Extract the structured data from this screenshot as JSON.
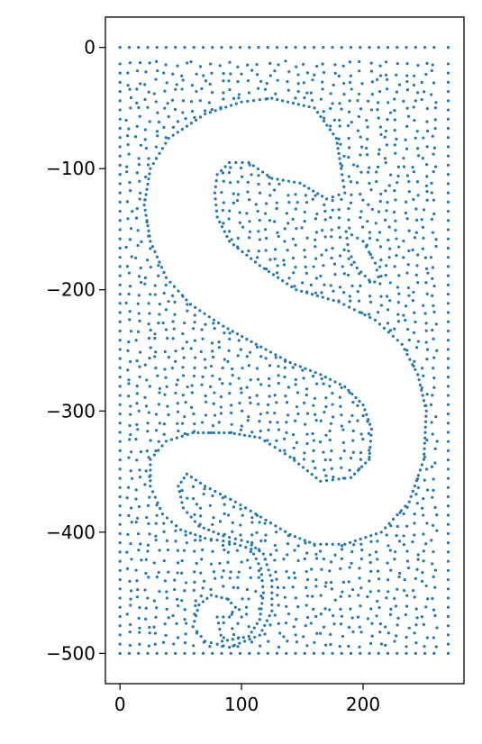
{
  "chart_data": {
    "type": "scatter",
    "title": "",
    "xlabel": "",
    "ylabel": "",
    "xlim": [
      -12,
      283
    ],
    "ylim": [
      -525,
      25
    ],
    "x_ticks": [
      {
        "value": 0,
        "label": "0"
      },
      {
        "value": 100,
        "label": "100"
      },
      {
        "value": 200,
        "label": "200"
      }
    ],
    "y_ticks": [
      {
        "value": 0,
        "label": "0"
      },
      {
        "value": -100,
        "label": "−100"
      },
      {
        "value": -200,
        "label": "−200"
      },
      {
        "value": -300,
        "label": "−300"
      },
      {
        "value": -400,
        "label": "−400"
      },
      {
        "value": -500,
        "label": "−500"
      }
    ],
    "grid": false,
    "marker_color": "#1f77b4",
    "domain": {
      "x": [
        0,
        270
      ],
      "y": [
        -500,
        0
      ]
    },
    "void_outline": [
      [
        125,
        -42
      ],
      [
        160,
        -50
      ],
      [
        178,
        -75
      ],
      [
        182,
        -100
      ],
      [
        185,
        -120
      ],
      [
        170,
        -125
      ],
      [
        148,
        -112
      ],
      [
        125,
        -108
      ],
      [
        106,
        -95
      ],
      [
        90,
        -95
      ],
      [
        80,
        -105
      ],
      [
        78,
        -120
      ],
      [
        80,
        -140
      ],
      [
        90,
        -160
      ],
      [
        115,
        -180
      ],
      [
        145,
        -200
      ],
      [
        180,
        -210
      ],
      [
        210,
        -225
      ],
      [
        232,
        -245
      ],
      [
        245,
        -270
      ],
      [
        252,
        -300
      ],
      [
        250,
        -340
      ],
      [
        238,
        -375
      ],
      [
        215,
        -400
      ],
      [
        185,
        -410
      ],
      [
        160,
        -410
      ],
      [
        140,
        -402
      ],
      [
        120,
        -390
      ],
      [
        95,
        -375
      ],
      [
        70,
        -362
      ],
      [
        55,
        -352
      ],
      [
        48,
        -362
      ],
      [
        52,
        -380
      ],
      [
        65,
        -395
      ],
      [
        85,
        -403
      ],
      [
        105,
        -408
      ],
      [
        118,
        -418
      ],
      [
        125,
        -440
      ],
      [
        125,
        -465
      ],
      [
        115,
        -485
      ],
      [
        90,
        -495
      ],
      [
        70,
        -490
      ],
      [
        60,
        -478
      ],
      [
        65,
        -460
      ],
      [
        75,
        -452
      ],
      [
        88,
        -455
      ],
      [
        95,
        -462
      ],
      [
        90,
        -470
      ],
      [
        80,
        -470
      ],
      [
        84,
        -490
      ],
      [
        106,
        -486
      ],
      [
        115,
        -472
      ],
      [
        118,
        -450
      ],
      [
        116,
        -430
      ],
      [
        108,
        -414
      ],
      [
        90,
        -408
      ],
      [
        70,
        -405
      ],
      [
        50,
        -398
      ],
      [
        35,
        -385
      ],
      [
        25,
        -362
      ],
      [
        25,
        -340
      ],
      [
        38,
        -325
      ],
      [
        60,
        -318
      ],
      [
        90,
        -318
      ],
      [
        115,
        -322
      ],
      [
        140,
        -338
      ],
      [
        165,
        -358
      ],
      [
        190,
        -355
      ],
      [
        205,
        -340
      ],
      [
        207,
        -315
      ],
      [
        200,
        -295
      ],
      [
        185,
        -280
      ],
      [
        165,
        -270
      ],
      [
        140,
        -260
      ],
      [
        112,
        -245
      ],
      [
        85,
        -230
      ],
      [
        58,
        -212
      ],
      [
        38,
        -190
      ],
      [
        25,
        -160
      ],
      [
        20,
        -130
      ],
      [
        25,
        -100
      ],
      [
        40,
        -75
      ],
      [
        70,
        -55
      ],
      [
        100,
        -45
      ]
    ],
    "inner_outline": [
      [
        186,
        -152
      ],
      [
        200,
        -160
      ],
      [
        210,
        -178
      ],
      [
        214,
        -195
      ],
      [
        205,
        -192
      ],
      [
        195,
        -182
      ],
      [
        188,
        -168
      ]
    ]
  }
}
